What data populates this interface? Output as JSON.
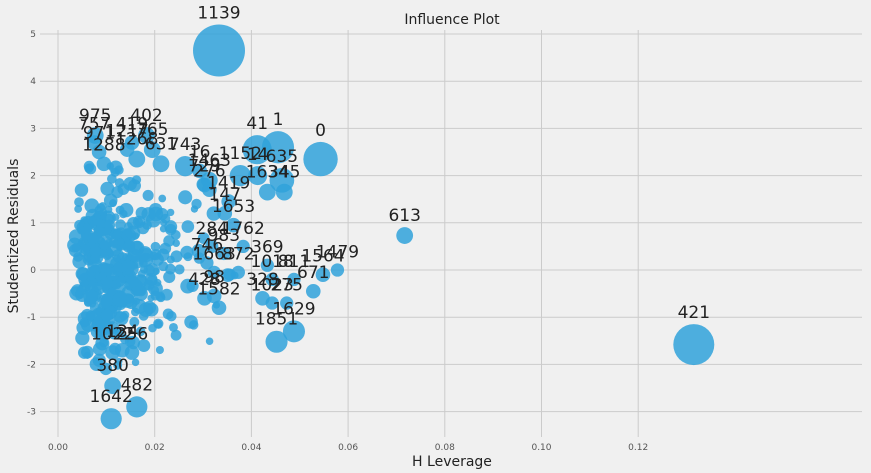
{
  "chart_data": {
    "type": "scatter",
    "title": "Influence Plot",
    "xlabel": "H Leverage",
    "ylabel": "Studentized Residuals",
    "xlim": [
      -0.003,
      0.138
    ],
    "ylim": [
      -3.4,
      5.2
    ],
    "xticks": [
      "0.00",
      "0.02",
      "0.04",
      "0.06",
      "0.08",
      "0.10",
      "0.12"
    ],
    "xtick_values": [
      0.0,
      0.02,
      0.04,
      0.06,
      0.08,
      0.1,
      0.12
    ],
    "yticks": [
      "-3",
      "-2",
      "-1",
      "0",
      "1",
      "2",
      "3",
      "4",
      "5"
    ],
    "ytick_values": [
      -3,
      -2,
      -1,
      0,
      1,
      2,
      3,
      4,
      5
    ],
    "grid": true,
    "color": "#30a2da",
    "labeled_points": [
      {
        "label": "1139",
        "x": 0.0333,
        "y": 4.65,
        "size": 1.0
      },
      {
        "label": "421",
        "x": 0.1315,
        "y": -1.58,
        "size": 0.75
      },
      {
        "label": "0",
        "x": 0.0543,
        "y": 2.35,
        "size": 0.6
      },
      {
        "label": "1",
        "x": 0.0455,
        "y": 2.6,
        "size": 0.55
      },
      {
        "label": "41",
        "x": 0.0412,
        "y": 2.55,
        "size": 0.48
      },
      {
        "label": "613",
        "x": 0.0717,
        "y": 0.73,
        "size": 0.2
      },
      {
        "label": "1479",
        "x": 0.0578,
        "y": 0.0,
        "size": 0.12
      },
      {
        "label": "1564",
        "x": 0.0548,
        "y": -0.1,
        "size": 0.15
      },
      {
        "label": "671",
        "x": 0.0528,
        "y": -0.45,
        "size": 0.15
      },
      {
        "label": "1629",
        "x": 0.0488,
        "y": -1.3,
        "size": 0.32
      },
      {
        "label": "1851",
        "x": 0.0452,
        "y": -1.52,
        "size": 0.32
      },
      {
        "label": "975",
        "x": 0.0077,
        "y": 2.85,
        "size": 0.2
      },
      {
        "label": "402",
        "x": 0.0183,
        "y": 2.85,
        "size": 0.2
      },
      {
        "label": "757",
        "x": 0.0075,
        "y": 2.7,
        "size": 0.15
      },
      {
        "label": "419",
        "x": 0.0153,
        "y": 2.7,
        "size": 0.15
      },
      {
        "label": "1217",
        "x": 0.0143,
        "y": 2.55,
        "size": 0.15
      },
      {
        "label": "765",
        "x": 0.0195,
        "y": 2.55,
        "size": 0.2
      },
      {
        "label": "971",
        "x": 0.0085,
        "y": 2.5,
        "size": 0.15
      },
      {
        "label": "1268",
        "x": 0.0163,
        "y": 2.35,
        "size": 0.2
      },
      {
        "label": "1288",
        "x": 0.0095,
        "y": 2.25,
        "size": 0.15
      },
      {
        "label": "631",
        "x": 0.0213,
        "y": 2.25,
        "size": 0.2
      },
      {
        "label": "743",
        "x": 0.0263,
        "y": 2.2,
        "size": 0.28
      },
      {
        "label": "16",
        "x": 0.0293,
        "y": 2.1,
        "size": 0.15
      },
      {
        "label": "1152",
        "x": 0.0377,
        "y": 2.0,
        "size": 0.3
      },
      {
        "label": "635",
        "x": 0.0463,
        "y": 1.9,
        "size": 0.38
      },
      {
        "label": "14",
        "x": 0.0413,
        "y": 2.0,
        "size": 0.25
      },
      {
        "label": "1463",
        "x": 0.0313,
        "y": 1.9,
        "size": 0.2
      },
      {
        "label": "729",
        "x": 0.0303,
        "y": 1.8,
        "size": 0.15
      },
      {
        "label": "276",
        "x": 0.0313,
        "y": 1.7,
        "size": 0.15
      },
      {
        "label": "1634",
        "x": 0.0433,
        "y": 1.65,
        "size": 0.2
      },
      {
        "label": "345",
        "x": 0.0468,
        "y": 1.65,
        "size": 0.2
      },
      {
        "label": "1419",
        "x": 0.0353,
        "y": 1.45,
        "size": 0.15
      },
      {
        "label": "147",
        "x": 0.0345,
        "y": 1.2,
        "size": 0.15
      },
      {
        "label": "1653",
        "x": 0.0363,
        "y": 0.95,
        "size": 0.15
      },
      {
        "label": "284",
        "x": 0.0318,
        "y": 0.5,
        "size": 0.12
      },
      {
        "label": "1762",
        "x": 0.0383,
        "y": 0.5,
        "size": 0.12
      },
      {
        "label": "983",
        "x": 0.0343,
        "y": 0.35,
        "size": 0.12
      },
      {
        "label": "746",
        "x": 0.0308,
        "y": 0.15,
        "size": 0.12
      },
      {
        "label": "369",
        "x": 0.0433,
        "y": 0.1,
        "size": 0.12
      },
      {
        "label": "1663",
        "x": 0.0323,
        "y": -0.05,
        "size": 0.12
      },
      {
        "label": "872",
        "x": 0.0373,
        "y": -0.05,
        "size": 0.12
      },
      {
        "label": "1018",
        "x": 0.0443,
        "y": -0.2,
        "size": 0.12
      },
      {
        "label": "811",
        "x": 0.0488,
        "y": -0.2,
        "size": 0.12
      },
      {
        "label": "428",
        "x": 0.0303,
        "y": -0.6,
        "size": 0.15
      },
      {
        "label": "98",
        "x": 0.0323,
        "y": -0.55,
        "size": 0.15
      },
      {
        "label": "328",
        "x": 0.0423,
        "y": -0.6,
        "size": 0.15
      },
      {
        "label": "1023",
        "x": 0.0443,
        "y": -0.7,
        "size": 0.12
      },
      {
        "label": "275",
        "x": 0.0473,
        "y": -0.7,
        "size": 0.12
      },
      {
        "label": "1582",
        "x": 0.0333,
        "y": -0.8,
        "size": 0.15
      },
      {
        "label": "1022",
        "x": 0.0113,
        "y": -1.75,
        "size": 0.15
      },
      {
        "label": "134",
        "x": 0.0133,
        "y": -1.7,
        "size": 0.15
      },
      {
        "label": "256",
        "x": 0.0153,
        "y": -1.75,
        "size": 0.15
      },
      {
        "label": "380",
        "x": 0.0113,
        "y": -2.45,
        "size": 0.2
      },
      {
        "label": "482",
        "x": 0.0163,
        "y": -2.9,
        "size": 0.3
      },
      {
        "label": "1642",
        "x": 0.011,
        "y": -3.15,
        "size": 0.3
      }
    ]
  }
}
